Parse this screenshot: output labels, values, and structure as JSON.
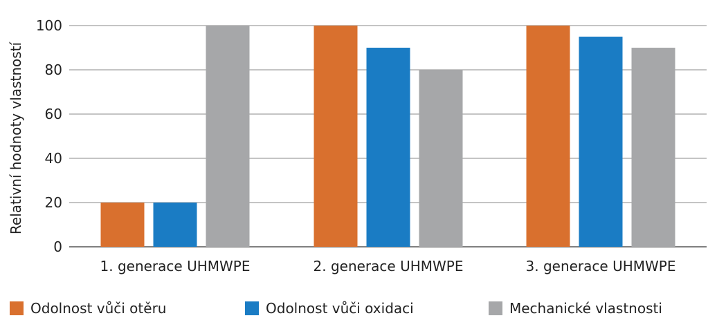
{
  "chart_data": {
    "type": "bar",
    "categories": [
      "1. generace UHMWPE",
      "2. generace UHMWPE",
      "3. generace UHMWPE"
    ],
    "series": [
      {
        "name": "Odolnost vůči otěru",
        "color": "#d9702e",
        "values": [
          20,
          100,
          100
        ]
      },
      {
        "name": "Odolnost vůči oxidaci",
        "color": "#1a7cc4",
        "values": [
          20,
          90,
          95
        ]
      },
      {
        "name": "Mechanické vlastnosti",
        "color": "#a6a7a9",
        "values": [
          100,
          80,
          90
        ]
      }
    ],
    "ylabel": "Relativní hodnoty vlastností",
    "xlabel": "",
    "ylim": [
      0,
      100
    ],
    "yticks": [
      "0",
      "20",
      "40",
      "60",
      "80",
      "100"
    ],
    "grid": true,
    "legend_position": "bottom"
  }
}
